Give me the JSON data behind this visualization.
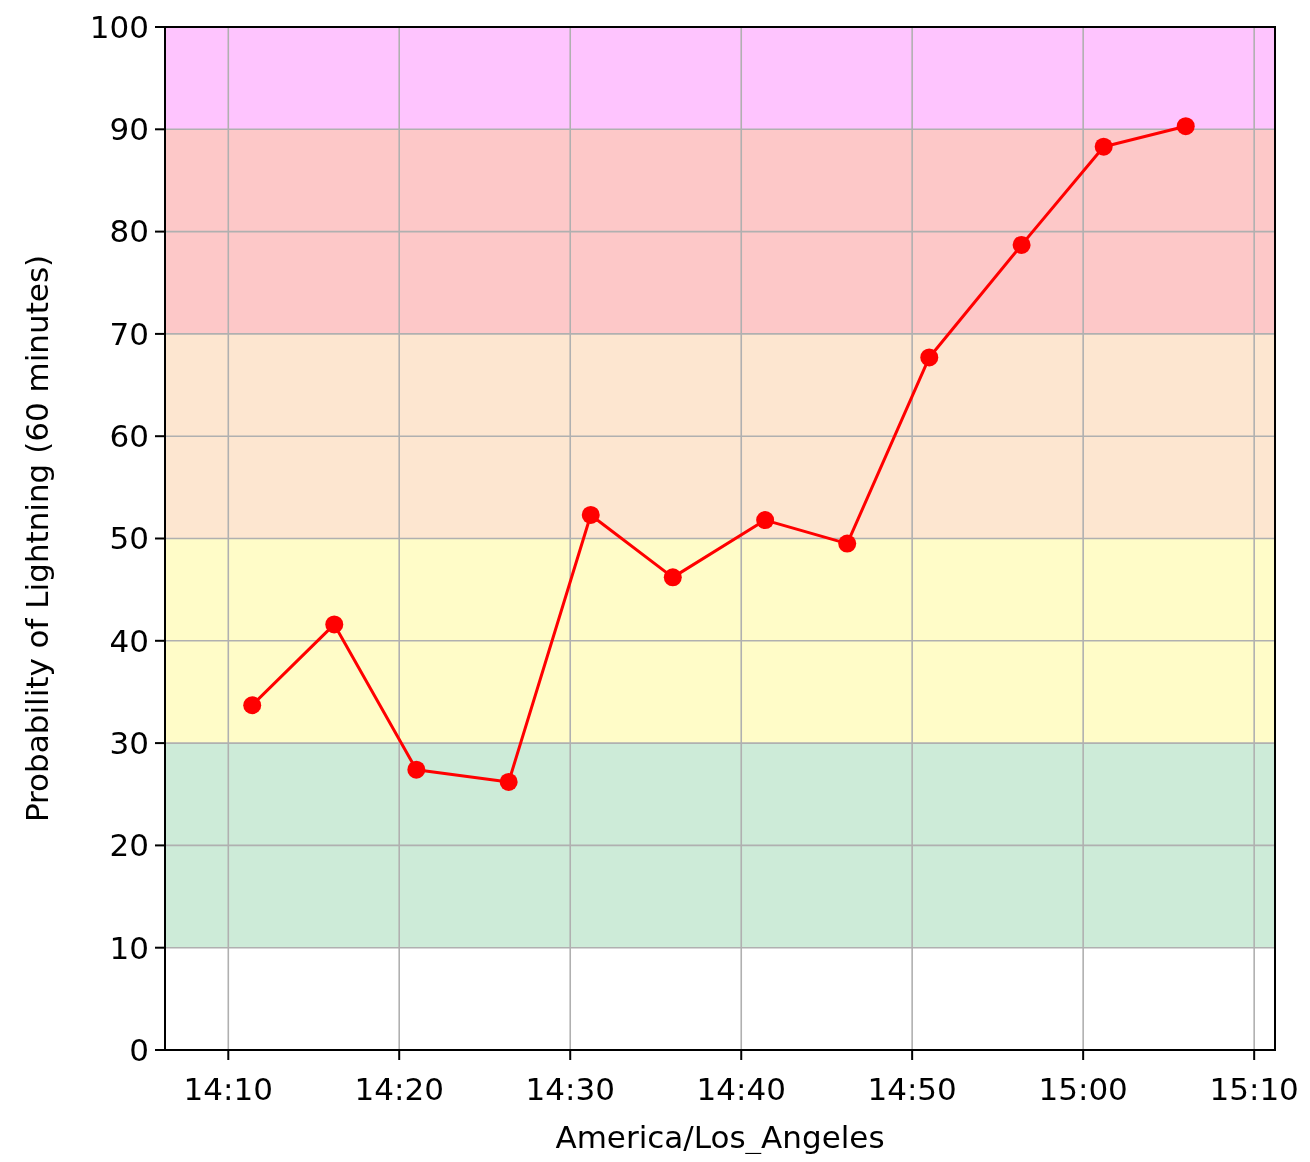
{
  "chart_data": {
    "type": "line",
    "xlabel": "America/Los_Angeles",
    "ylabel": "Probability of Lightning (60 minutes)",
    "x": [
      14.19,
      14.27,
      14.35,
      14.44,
      14.52,
      14.6,
      14.69,
      14.77,
      14.85,
      14.94,
      15.02,
      15.1
    ],
    "series": [
      {
        "color": "#ff0000",
        "values": [
          33.7,
          41.6,
          27.4,
          26.2,
          52.3,
          46.2,
          51.8,
          49.5,
          67.7,
          78.7,
          88.3,
          90.3
        ]
      }
    ],
    "xlim": [
      14.105,
      15.187
    ],
    "xticks": [
      {
        "value": 14.1667,
        "label": "14:10"
      },
      {
        "value": 14.3333,
        "label": "14:20"
      },
      {
        "value": 14.5,
        "label": "14:30"
      },
      {
        "value": 14.6667,
        "label": "14:40"
      },
      {
        "value": 14.8333,
        "label": "14:50"
      },
      {
        "value": 15,
        "label": "15:00"
      },
      {
        "value": 15.1667,
        "label": "15:10"
      }
    ],
    "ylim": [
      0,
      100
    ],
    "yticks": [
      0,
      10,
      20,
      30,
      40,
      50,
      60,
      70,
      80,
      90,
      100
    ],
    "bands": [
      {
        "axis": "y",
        "from": 10,
        "to": 30,
        "color": "#cdebd8"
      },
      {
        "axis": "y",
        "from": 30,
        "to": 50,
        "color": "#fffcc8"
      },
      {
        "axis": "y",
        "from": 50,
        "to": 70,
        "color": "#fde6d0"
      },
      {
        "axis": "y",
        "from": 70,
        "to": 90,
        "color": "#fdc8c8"
      },
      {
        "axis": "y",
        "from": 90,
        "to": 100,
        "color": "#fec4fe"
      }
    ],
    "grid": true,
    "marker": "circle",
    "line_style": "solid"
  }
}
